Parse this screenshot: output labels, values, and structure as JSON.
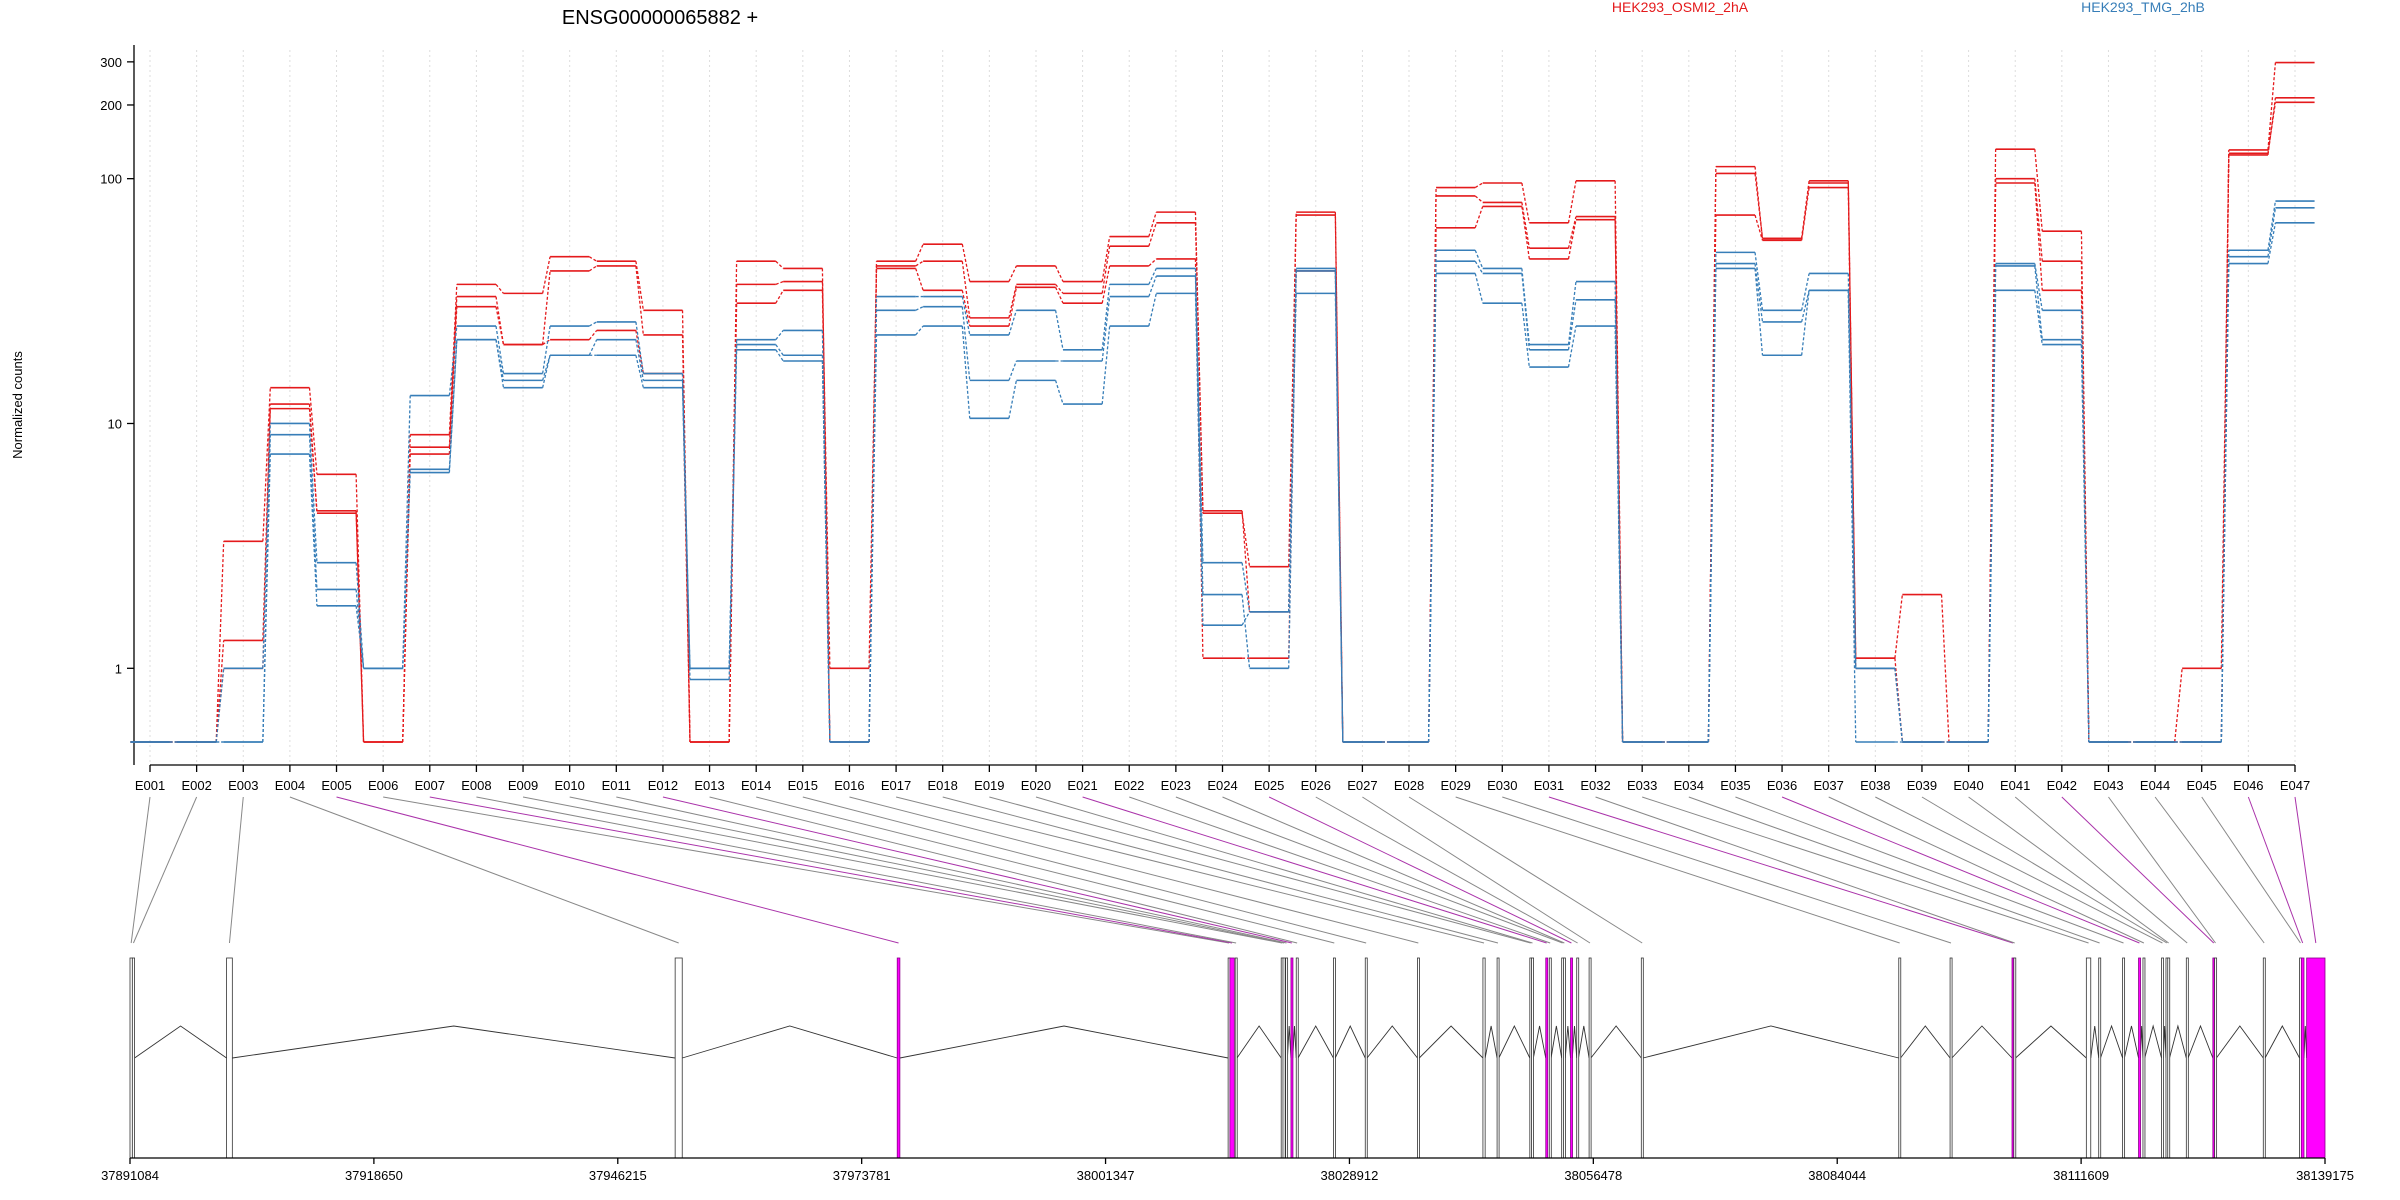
{
  "chart_data": {
    "type": "line",
    "title": "ENSG00000065882 +",
    "ylabel": "Normalized counts",
    "xlabel": "",
    "yscale": "log",
    "ylim": [
      0.5,
      320
    ],
    "yticks": [
      1,
      10,
      100,
      200,
      300
    ],
    "grid": "vertical dotted lines per exon",
    "legend": "top-right",
    "colors": {
      "HEK293_OSMI2_2hA": "#e41a1c",
      "HEK293_TMG_2hB": "#377eb8",
      "special_exon": "#ff00ff",
      "gene_line": "#555555"
    },
    "categories": [
      "E001",
      "E002",
      "E003",
      "E004",
      "E005",
      "E006",
      "E007",
      "E008",
      "E009",
      "E010",
      "E011",
      "E012",
      "E013",
      "E014",
      "E015",
      "E016",
      "E017",
      "E018",
      "E019",
      "E020",
      "E021",
      "E022",
      "E023",
      "E024",
      "E025",
      "E026",
      "E027",
      "E028",
      "E029",
      "E030",
      "E031",
      "E032",
      "E033",
      "E034",
      "E035",
      "E036",
      "E037",
      "E038",
      "E039",
      "E040",
      "E041",
      "E042",
      "E043",
      "E044",
      "E045",
      "E046",
      "E047"
    ],
    "series": [
      {
        "name": "HEK293_OSMI2_2hA",
        "group": "HEK293_OSMI2_2hA",
        "values": [
          0.5,
          0.5,
          3.3,
          14,
          6.2,
          0.5,
          9,
          37,
          34,
          48,
          46,
          29,
          0.5,
          46,
          43,
          0.5,
          46,
          54,
          38,
          44,
          38,
          58,
          73,
          4.3,
          2.6,
          73,
          0.5,
          0.5,
          92,
          96,
          66,
          98,
          0.5,
          0.5,
          112,
          57,
          98,
          1.1,
          2.0,
          0.5,
          132,
          61,
          0.5,
          0.5,
          0.5,
          131,
          298
        ]
      },
      {
        "name": "HEK293_OSMI2_2hA",
        "group": "HEK293_OSMI2_2hA",
        "values": [
          0.5,
          0.5,
          1.3,
          12,
          4.4,
          0.5,
          8,
          33,
          21,
          42,
          44,
          23,
          0.5,
          37,
          38,
          1.0,
          44,
          46,
          27,
          37,
          34,
          53,
          66,
          4.4,
          1.7,
          71,
          0.5,
          0.5,
          85,
          80,
          52,
          70,
          0.5,
          0.5,
          105,
          57,
          96,
          1.0,
          0.5,
          0.5,
          100,
          46,
          0.5,
          0.5,
          1.0,
          125,
          214
        ]
      },
      {
        "name": "HEK293_OSMI2_2hA",
        "group": "HEK293_OSMI2_2hA",
        "values": [
          0.5,
          0.5,
          1.0,
          11.5,
          4.3,
          0.5,
          7.5,
          30,
          21,
          22,
          24,
          16,
          0.5,
          31,
          35,
          0.5,
          43,
          35,
          25,
          36,
          31,
          44,
          47,
          1.1,
          1.1,
          42,
          0.5,
          0.5,
          63,
          77,
          47,
          68,
          0.5,
          0.5,
          71,
          56,
          92,
          1.1,
          0.5,
          0.5,
          96,
          35,
          0.5,
          0.5,
          0.5,
          127,
          205
        ]
      },
      {
        "name": "HEK293_TMG_2hB",
        "group": "HEK293_TMG_2hB",
        "values": [
          0.5,
          0.5,
          1.0,
          10,
          2.7,
          1.0,
          13,
          25,
          16,
          25,
          26,
          16,
          1.0,
          22,
          24,
          0.5,
          33,
          33,
          23,
          29,
          20,
          37,
          43,
          2.7,
          1.7,
          43,
          0.5,
          0.5,
          51,
          43,
          21,
          38,
          0.5,
          0.5,
          50,
          29,
          41,
          1.0,
          0.5,
          0.5,
          45,
          29,
          0.5,
          0.5,
          0.5,
          51,
          81
        ]
      },
      {
        "name": "HEK293_TMG_2hB",
        "group": "HEK293_TMG_2hB",
        "values": [
          0.5,
          0.5,
          0.5,
          9,
          2.1,
          1.0,
          6.5,
          22,
          15,
          19,
          22,
          15,
          1.0,
          21,
          19,
          0.5,
          29,
          30,
          15,
          18,
          18,
          33,
          40,
          2.0,
          1.0,
          42,
          0.5,
          0.5,
          46,
          41,
          20,
          32,
          0.5,
          0.5,
          45,
          26,
          35,
          1.0,
          0.5,
          0.5,
          44,
          22,
          0.5,
          0.5,
          0.5,
          48,
          76
        ]
      },
      {
        "name": "HEK293_TMG_2hB",
        "group": "HEK293_TMG_2hB",
        "values": [
          0.5,
          0.5,
          0.5,
          7.5,
          1.8,
          1.0,
          6.3,
          22,
          14,
          19,
          19,
          14,
          0.9,
          20,
          18,
          0.5,
          23,
          25,
          10.5,
          15,
          12,
          25,
          34,
          1.5,
          1.7,
          34,
          0.5,
          0.5,
          41,
          31,
          17,
          25,
          0.5,
          0.5,
          43,
          19,
          35,
          0.5,
          0.5,
          0.5,
          35,
          21,
          0.5,
          0.5,
          0.5,
          45,
          66
        ]
      }
    ],
    "gene_model": {
      "start": 37891084,
      "end": 38139175,
      "coord_ticks": [
        "37891084",
        "37918650",
        "37946215",
        "37973781",
        "38001347",
        "38028912",
        "38056478",
        "38084044",
        "38111609",
        "38139175"
      ],
      "exons": [
        {
          "id": "E001",
          "start": 37891084,
          "end": 37891350
        },
        {
          "id": "E002",
          "start": 37891350,
          "end": 37891600
        },
        {
          "id": "E003",
          "start": 37902000,
          "end": 37902650
        },
        {
          "id": "E004",
          "start": 37952700,
          "end": 37953500
        },
        {
          "id": "E005",
          "start": 37977800,
          "end": 37978100
        },
        {
          "id": "E006",
          "start": 38015200,
          "end": 38015400
        },
        {
          "id": "E007",
          "start": 38015400,
          "end": 38015900
        },
        {
          "id": "E008",
          "start": 38016000,
          "end": 38016200
        },
        {
          "id": "E009",
          "start": 38021200,
          "end": 38021400
        },
        {
          "id": "E010",
          "start": 38021400,
          "end": 38021650
        },
        {
          "id": "E011",
          "start": 38021700,
          "end": 38021900
        },
        {
          "id": "E012",
          "start": 38022300,
          "end": 38022500
        },
        {
          "id": "E013",
          "start": 38022900,
          "end": 38023100
        },
        {
          "id": "E014",
          "start": 38027100,
          "end": 38027300
        },
        {
          "id": "E015",
          "start": 38030700,
          "end": 38030900
        },
        {
          "id": "E016",
          "start": 38036600,
          "end": 38036800
        },
        {
          "id": "E017",
          "start": 38044000,
          "end": 38044250
        },
        {
          "id": "E018",
          "start": 38045600,
          "end": 38045800
        },
        {
          "id": "E019",
          "start": 38049300,
          "end": 38049500
        },
        {
          "id": "E020",
          "start": 38049500,
          "end": 38049700
        },
        {
          "id": "E021",
          "start": 38051100,
          "end": 38051300
        },
        {
          "id": "E022",
          "start": 38051500,
          "end": 38051700
        },
        {
          "id": "E023",
          "start": 38052900,
          "end": 38053100
        },
        {
          "id": "E024",
          "start": 38053100,
          "end": 38053300
        },
        {
          "id": "E025",
          "start": 38053900,
          "end": 38054100
        },
        {
          "id": "E026",
          "start": 38054600,
          "end": 38054800
        },
        {
          "id": "E027",
          "start": 38056000,
          "end": 38056200
        },
        {
          "id": "E028",
          "start": 38061900,
          "end": 38062100
        },
        {
          "id": "E029",
          "start": 38091000,
          "end": 38091200
        },
        {
          "id": "E030",
          "start": 38096800,
          "end": 38097000
        },
        {
          "id": "E031",
          "start": 38103800,
          "end": 38104000
        },
        {
          "id": "E032",
          "start": 38104000,
          "end": 38104200
        },
        {
          "id": "E033",
          "start": 38112200,
          "end": 38112700
        },
        {
          "id": "E034",
          "start": 38113600,
          "end": 38113800
        },
        {
          "id": "E035",
          "start": 38116300,
          "end": 38116500
        },
        {
          "id": "E036",
          "start": 38118100,
          "end": 38118300
        },
        {
          "id": "E037",
          "start": 38118600,
          "end": 38118800
        },
        {
          "id": "E038",
          "start": 38120700,
          "end": 38120900
        },
        {
          "id": "E039",
          "start": 38121200,
          "end": 38121400
        },
        {
          "id": "E040",
          "start": 38121400,
          "end": 38121600
        },
        {
          "id": "E041",
          "start": 38123500,
          "end": 38123700
        },
        {
          "id": "E042",
          "start": 38126500,
          "end": 38126700
        },
        {
          "id": "E043",
          "start": 38126700,
          "end": 38126900
        },
        {
          "id": "E044",
          "start": 38132200,
          "end": 38132400
        },
        {
          "id": "E045",
          "start": 38136300,
          "end": 38136500
        },
        {
          "id": "E046",
          "start": 38136500,
          "end": 38136800
        },
        {
          "id": "E047",
          "start": 38137100,
          "end": 38139175
        }
      ],
      "highlighted_exons": [
        "E005",
        "E007",
        "E012",
        "E021",
        "E025",
        "E031",
        "E036",
        "E042",
        "E046",
        "E047"
      ]
    }
  }
}
